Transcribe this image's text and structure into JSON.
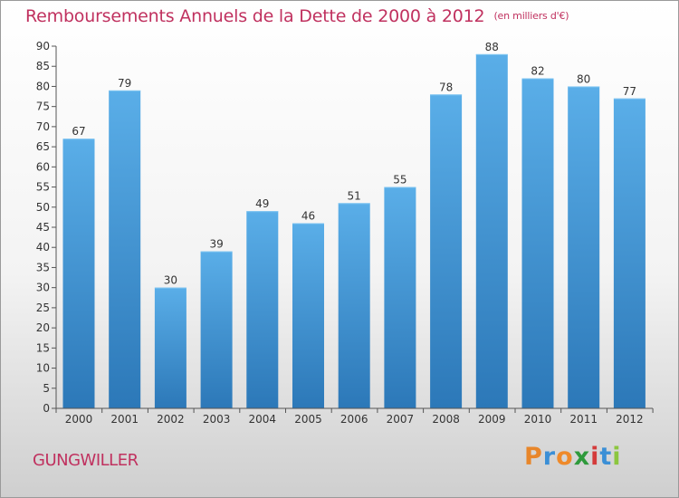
{
  "header": {
    "title": "Remboursements Annuels de la Dette de 2000 à 2012",
    "unit": "(en milliers d'€)"
  },
  "footer": {
    "place": "GUNGWILLER",
    "logo_text": "Proxiti",
    "logo_colors": [
      "#e8862a",
      "#3b8fd6",
      "#ef8a2a",
      "#2f9a3c",
      "#d43b3b",
      "#3b8fd6",
      "#8cc63f"
    ]
  },
  "chart_data": {
    "type": "bar",
    "title": "Remboursements Annuels de la Dette de 2000 à 2012",
    "xlabel": "",
    "ylabel": "",
    "categories": [
      "2000",
      "2001",
      "2002",
      "2003",
      "2004",
      "2005",
      "2006",
      "2007",
      "2008",
      "2009",
      "2010",
      "2011",
      "2012"
    ],
    "values": [
      67,
      79,
      30,
      39,
      49,
      46,
      51,
      55,
      78,
      88,
      82,
      80,
      77
    ],
    "ylim": [
      0,
      90
    ],
    "yticks": [
      0,
      5,
      10,
      15,
      20,
      25,
      30,
      35,
      40,
      45,
      50,
      55,
      60,
      65,
      70,
      75,
      80,
      85,
      90
    ],
    "grid": false,
    "colors": {
      "bar_top": "#5aaee8",
      "bar_bottom": "#2c78b8",
      "axis": "#555555",
      "text": "#333333"
    }
  }
}
